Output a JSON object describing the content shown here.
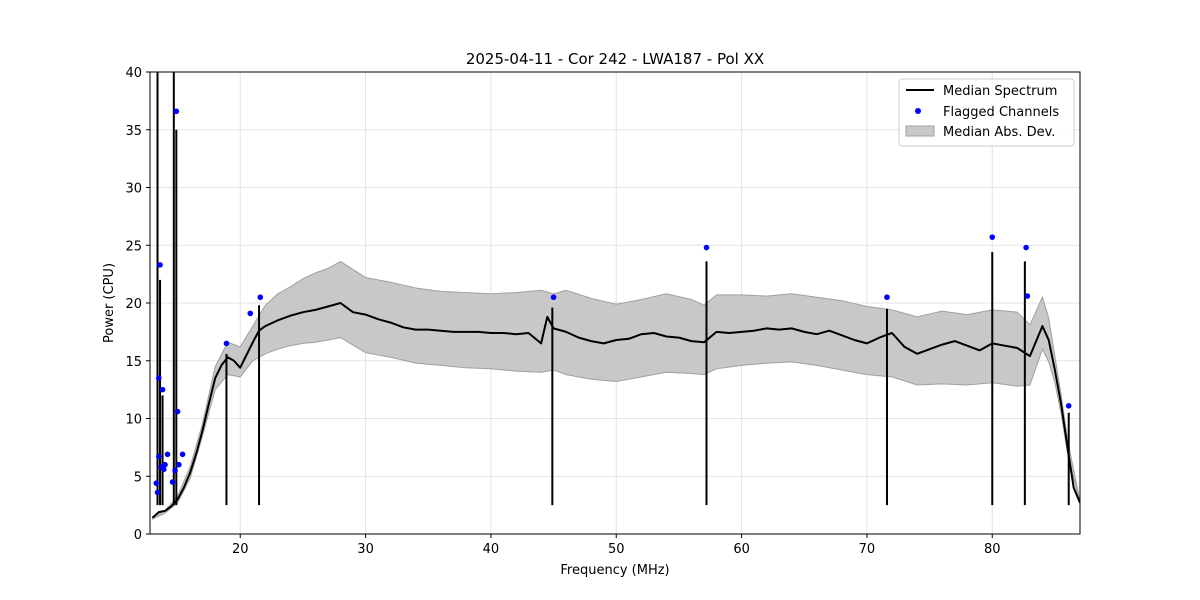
{
  "chart_data": {
    "type": "line",
    "title": "2025-04-11 - Cor 242 - LWA187 - Pol XX",
    "xlabel": "Frequency (MHz)",
    "ylabel": "Power (CPU)",
    "xlim": [
      12.8,
      87.0
    ],
    "ylim": [
      0,
      40
    ],
    "xticks": [
      20,
      30,
      40,
      50,
      60,
      70,
      80
    ],
    "yticks": [
      0,
      5,
      10,
      15,
      20,
      25,
      30,
      35,
      40
    ],
    "grid": true,
    "legend_position": "top-right",
    "legend": [
      "Median Spectrum",
      "Flagged Channels",
      "Median Abs. Dev."
    ],
    "colors": {
      "median": "#000000",
      "flagged": "#0000ff",
      "mad_fill": "#c8c8c8",
      "mad_edge": "#a0a0a0"
    },
    "series": [
      {
        "name": "Median Spectrum",
        "x": [
          13.0,
          13.5,
          14.0,
          14.5,
          15.0,
          15.5,
          16.0,
          16.5,
          17.0,
          17.5,
          18.0,
          18.5,
          19.0,
          19.5,
          20.0,
          20.5,
          21.0,
          21.5,
          22.0,
          23.0,
          24.0,
          25.0,
          26.0,
          27.0,
          28.0,
          29.0,
          30.0,
          31.0,
          32.0,
          33.0,
          34.0,
          35.0,
          36.0,
          37.0,
          38.0,
          39.0,
          40.0,
          41.0,
          42.0,
          43.0,
          44.0,
          44.5,
          45.0,
          46.0,
          47.0,
          48.0,
          49.0,
          50.0,
          51.0,
          52.0,
          53.0,
          54.0,
          55.0,
          56.0,
          57.0,
          58.0,
          59.0,
          60.0,
          61.0,
          62.0,
          63.0,
          64.0,
          65.0,
          66.0,
          67.0,
          68.0,
          69.0,
          70.0,
          71.0,
          72.0,
          73.0,
          74.0,
          75.0,
          76.0,
          77.0,
          78.0,
          79.0,
          80.0,
          81.0,
          82.0,
          83.0,
          84.0,
          84.5,
          85.0,
          85.5,
          86.0,
          86.5,
          87.0
        ],
        "y": [
          1.4,
          1.9,
          2.0,
          2.4,
          3.0,
          4.0,
          5.3,
          7.0,
          9.0,
          11.3,
          13.5,
          14.6,
          15.3,
          15.0,
          14.4,
          15.5,
          16.6,
          17.6,
          18.0,
          18.5,
          18.9,
          19.2,
          19.4,
          19.7,
          20.0,
          19.2,
          19.0,
          18.6,
          18.3,
          17.9,
          17.7,
          17.7,
          17.6,
          17.5,
          17.5,
          17.5,
          17.4,
          17.4,
          17.3,
          17.4,
          16.5,
          18.8,
          17.8,
          17.5,
          17.0,
          16.7,
          16.5,
          16.8,
          16.9,
          17.3,
          17.4,
          17.1,
          17.0,
          16.7,
          16.6,
          17.5,
          17.4,
          17.5,
          17.6,
          17.8,
          17.7,
          17.8,
          17.5,
          17.3,
          17.6,
          17.2,
          16.8,
          16.5,
          17.0,
          17.4,
          16.2,
          15.6,
          16.0,
          16.4,
          16.7,
          16.3,
          15.9,
          16.5,
          16.3,
          16.1,
          15.4,
          18.0,
          16.8,
          14.2,
          11.2,
          7.5,
          4.0,
          2.7
        ]
      }
    ],
    "mad_band": {
      "x": [
        13.0,
        14.0,
        15.0,
        16.0,
        17.0,
        18.0,
        19.0,
        20.0,
        21.0,
        22.0,
        23.0,
        24.0,
        25.0,
        26.0,
        27.0,
        28.0,
        30.0,
        32.0,
        34.0,
        36.0,
        38.0,
        40.0,
        42.0,
        44.0,
        45.0,
        46.0,
        48.0,
        50.0,
        52.0,
        54.0,
        56.0,
        57.0,
        58.0,
        60.0,
        62.0,
        64.0,
        66.0,
        68.0,
        70.0,
        72.0,
        74.0,
        76.0,
        78.0,
        80.0,
        82.0,
        83.0,
        84.0,
        84.5,
        85.0,
        85.5,
        86.0,
        87.0
      ],
      "lower": [
        1.3,
        1.8,
        2.7,
        4.8,
        8.5,
        12.5,
        13.8,
        13.6,
        15.0,
        15.6,
        16.0,
        16.3,
        16.5,
        16.6,
        16.8,
        17.0,
        15.7,
        15.3,
        14.8,
        14.6,
        14.4,
        14.3,
        14.1,
        14.0,
        14.2,
        13.8,
        13.4,
        13.2,
        13.6,
        14.0,
        13.9,
        13.8,
        14.3,
        14.6,
        14.8,
        14.9,
        14.6,
        14.2,
        13.8,
        13.6,
        12.9,
        13.0,
        12.9,
        13.1,
        12.8,
        12.9,
        16.0,
        14.9,
        13.1,
        10.4,
        7.0,
        2.6
      ],
      "upper": [
        1.5,
        2.0,
        3.3,
        5.8,
        9.6,
        14.5,
        16.6,
        16.2,
        18.0,
        19.8,
        20.8,
        21.4,
        22.1,
        22.6,
        23.0,
        23.6,
        22.2,
        21.8,
        21.3,
        21.0,
        20.9,
        20.8,
        20.9,
        21.1,
        20.8,
        21.1,
        20.4,
        19.9,
        20.3,
        20.8,
        20.3,
        19.8,
        20.7,
        20.7,
        20.6,
        20.8,
        20.5,
        20.2,
        19.7,
        19.4,
        18.8,
        19.3,
        19.0,
        19.4,
        19.2,
        18.1,
        20.5,
        18.7,
        15.4,
        12.0,
        8.2,
        2.8
      ]
    },
    "spikes": [
      {
        "x": 13.4,
        "y": 40.0
      },
      {
        "x": 13.6,
        "y": 22.0
      },
      {
        "x": 13.8,
        "y": 12.0
      },
      {
        "x": 14.7,
        "y": 40.0
      },
      {
        "x": 14.9,
        "y": 35.0
      },
      {
        "x": 18.9,
        "y": 15.6
      },
      {
        "x": 21.5,
        "y": 19.8
      },
      {
        "x": 44.9,
        "y": 19.6
      },
      {
        "x": 57.2,
        "y": 23.6
      },
      {
        "x": 71.6,
        "y": 19.5
      },
      {
        "x": 80.0,
        "y": 24.4
      },
      {
        "x": 82.6,
        "y": 23.6
      },
      {
        "x": 86.1,
        "y": 10.5
      }
    ],
    "flagged": {
      "x": [
        13.3,
        13.4,
        13.5,
        13.5,
        13.6,
        13.7,
        13.8,
        13.9,
        14.0,
        14.2,
        14.6,
        14.8,
        14.9,
        15.0,
        15.1,
        15.4,
        18.9,
        20.8,
        21.6,
        45.0,
        57.2,
        71.6,
        80.0,
        82.7,
        82.8,
        86.1
      ],
      "y": [
        4.4,
        3.6,
        13.5,
        6.7,
        23.3,
        5.8,
        12.5,
        5.6,
        6.0,
        6.9,
        4.5,
        5.5,
        36.6,
        10.6,
        6.0,
        6.9,
        16.5,
        19.1,
        20.5,
        20.5,
        24.8,
        20.5,
        25.7,
        24.8,
        20.6,
        11.1
      ]
    }
  }
}
